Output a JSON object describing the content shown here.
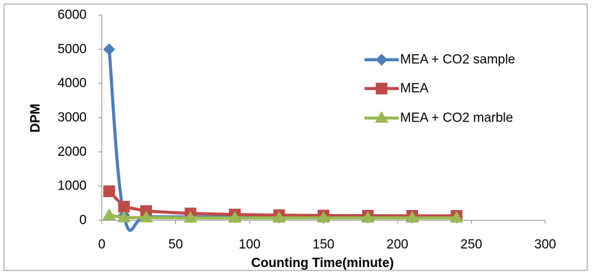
{
  "chart_data": {
    "type": "line",
    "title": "",
    "xlabel": "Counting Time(minute)",
    "ylabel": "DPM",
    "xlim": [
      0,
      300
    ],
    "ylim": [
      0,
      6000
    ],
    "x_ticks": [
      0,
      50,
      100,
      150,
      200,
      250,
      300
    ],
    "y_ticks": [
      0,
      1000,
      2000,
      3000,
      4000,
      5000,
      6000
    ],
    "grid": false,
    "legend_position": "right",
    "series": [
      {
        "name": "MEA + CO2 sample",
        "color": "#4A7EBB",
        "marker": "diamond",
        "smooth": true,
        "x": [
          5,
          15,
          30,
          60,
          90,
          120,
          150,
          180,
          210,
          240
        ],
        "y": [
          5000,
          150,
          110,
          100,
          95,
          90,
          90,
          85,
          85,
          85
        ]
      },
      {
        "name": "MEA",
        "color": "#BE4B48",
        "marker": "square",
        "smooth": false,
        "x": [
          5,
          15,
          30,
          60,
          90,
          120,
          150,
          180,
          210,
          240
        ],
        "y": [
          850,
          400,
          270,
          200,
          170,
          150,
          140,
          135,
          130,
          130
        ]
      },
      {
        "name": "MEA + CO2 marble",
        "color": "#98B954",
        "marker": "triangle",
        "smooth": false,
        "x": [
          5,
          15,
          30,
          60,
          90,
          120,
          150,
          180,
          210,
          240
        ],
        "y": [
          150,
          80,
          80,
          70,
          70,
          70,
          70,
          70,
          70,
          70
        ]
      }
    ]
  }
}
